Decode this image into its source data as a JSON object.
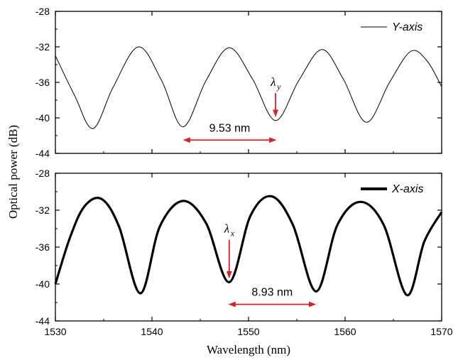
{
  "chart_data": [
    {
      "type": "line",
      "panel": "top",
      "xlim": [
        1530,
        1570
      ],
      "ylim": [
        -44,
        -28
      ],
      "yticks": [
        -28,
        -32,
        -36,
        -40,
        -44
      ],
      "xlabel": "",
      "ylabel": "Optical power (dB)",
      "legend": {
        "placement": "top-right"
      },
      "series": [
        {
          "name": "Y-axis",
          "color": "#000000",
          "line": "thin",
          "x": [
            1530,
            1532,
            1533.9,
            1536,
            1538.6,
            1541,
            1543.2,
            1545.6,
            1548,
            1550.4,
            1552.8,
            1555.2,
            1557.6,
            1559.8,
            1562.2,
            1564.6,
            1566.8,
            1568.5,
            1570
          ],
          "y": [
            -33.0,
            -37.5,
            -41.2,
            -36.5,
            -32.0,
            -35.8,
            -41.0,
            -35.8,
            -32.1,
            -35.6,
            -40.3,
            -35.8,
            -32.3,
            -35.6,
            -40.5,
            -36.0,
            -32.5,
            -33.6,
            -36.5
          ]
        }
      ],
      "annotations": [
        {
          "text": "9.53 nm",
          "type": "double-arrow",
          "x_from": 1543.3,
          "x_to": 1552.8,
          "y": -42.5,
          "color": "#e02020"
        },
        {
          "text": "λ",
          "subscript": "y",
          "type": "down-arrow",
          "x": 1552.8,
          "y_from": -37.2,
          "y_to": -39.8,
          "color": "#e02020"
        }
      ]
    },
    {
      "type": "line",
      "panel": "bottom",
      "xlim": [
        1530,
        1570
      ],
      "ylim": [
        -44,
        -28
      ],
      "xticks": [
        1530,
        1540,
        1550,
        1560,
        1570
      ],
      "yticks": [
        -28,
        -32,
        -36,
        -40,
        -44
      ],
      "xlabel": "Wavelength (nm)",
      "ylabel": "Optical power (dB)",
      "legend": {
        "placement": "top-right"
      },
      "series": [
        {
          "name": "X-axis",
          "color": "#000000",
          "line": "thick",
          "x": [
            1530,
            1531.5,
            1533,
            1534.8,
            1536.6,
            1538.8,
            1540.8,
            1543.2,
            1545.6,
            1548.0,
            1550.2,
            1552.4,
            1554.6,
            1557.0,
            1559.2,
            1561.6,
            1564.0,
            1566.4,
            1568.2,
            1570
          ],
          "y": [
            -40.0,
            -35.0,
            -31.6,
            -30.8,
            -33.8,
            -41.0,
            -33.8,
            -31.0,
            -33.4,
            -39.8,
            -32.6,
            -30.5,
            -33.6,
            -40.8,
            -33.6,
            -31.1,
            -33.6,
            -41.2,
            -35.4,
            -32.2
          ]
        }
      ],
      "annotations": [
        {
          "text": "8.93 nm",
          "type": "double-arrow",
          "x_from": 1548.0,
          "x_to": 1556.9,
          "y": -42.2,
          "color": "#e02020"
        },
        {
          "text": "λ",
          "subscript": "x",
          "type": "down-arrow",
          "x": 1548.0,
          "y_from": -35.2,
          "y_to": -39.3,
          "color": "#e02020"
        }
      ]
    }
  ],
  "axis_titles": {
    "x": "Wavelength (nm)",
    "y": "Optical power (dB)"
  }
}
